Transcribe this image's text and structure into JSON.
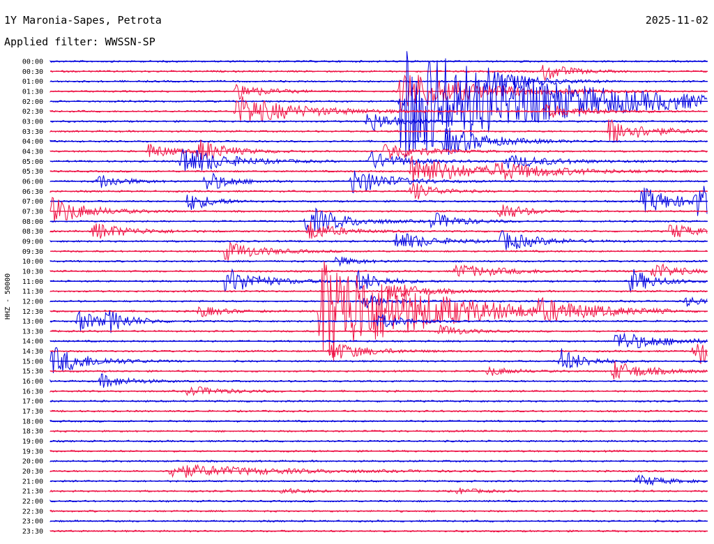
{
  "header": {
    "station_title": "1Y Maronia-Sapes, Petrota",
    "date": "2025-11-02",
    "filter_text": "Applied filter: WWSSN-SP"
  },
  "chart_data": {
    "type": "line",
    "ylabel": "HHZ - 50000",
    "row_labels": [
      "00:00",
      "00:30",
      "01:00",
      "01:30",
      "02:00",
      "02:30",
      "03:00",
      "03:30",
      "04:00",
      "04:30",
      "05:00",
      "05:30",
      "06:00",
      "06:30",
      "07:00",
      "07:30",
      "08:00",
      "08:30",
      "09:00",
      "09:30",
      "10:00",
      "10:30",
      "11:00",
      "11:30",
      "12:00",
      "12:30",
      "13:00",
      "13:30",
      "14:00",
      "14:30",
      "15:00",
      "15:30",
      "16:00",
      "16:30",
      "17:00",
      "17:30",
      "18:00",
      "18:30",
      "19:00",
      "19:30",
      "20:00",
      "20:30",
      "21:00",
      "21:30",
      "22:00",
      "22:30",
      "23:00",
      "23:30"
    ],
    "colors": [
      "#0000dd",
      "#ee1144"
    ],
    "row_minutes": 30,
    "events": [
      {
        "row": 1,
        "minute": 22.5,
        "amp": 1.0,
        "dur": 1.0
      },
      {
        "row": 2,
        "minute": 20.0,
        "amp": 1.5,
        "dur": 1.5
      },
      {
        "row": 3,
        "minute": 16.0,
        "amp": 2.2,
        "dur": 3.0
      },
      {
        "row": 3,
        "minute": 8.5,
        "amp": 0.8,
        "dur": 1.2
      },
      {
        "row": 4,
        "minute": 16.0,
        "amp": 6.0,
        "dur": 6.0
      },
      {
        "row": 5,
        "minute": 8.5,
        "amp": 1.6,
        "dur": 2.5
      },
      {
        "row": 5,
        "minute": 22.5,
        "amp": 0.7,
        "dur": 1.8
      },
      {
        "row": 6,
        "minute": 14.5,
        "amp": 1.2,
        "dur": 1.0
      },
      {
        "row": 7,
        "minute": 25.5,
        "amp": 1.4,
        "dur": 1.5
      },
      {
        "row": 8,
        "minute": 18.0,
        "amp": 1.5,
        "dur": 1.8
      },
      {
        "row": 9,
        "minute": 4.5,
        "amp": 0.8,
        "dur": 1.0
      },
      {
        "row": 9,
        "minute": 6.8,
        "amp": 1.2,
        "dur": 1.2
      },
      {
        "row": 9,
        "minute": 15.3,
        "amp": 1.0,
        "dur": 1.5
      },
      {
        "row": 10,
        "minute": 6.0,
        "amp": 1.6,
        "dur": 1.8
      },
      {
        "row": 10,
        "minute": 14.5,
        "amp": 1.0,
        "dur": 1.5
      },
      {
        "row": 10,
        "minute": 20.8,
        "amp": 0.7,
        "dur": 2.0
      },
      {
        "row": 11,
        "minute": 16.5,
        "amp": 1.8,
        "dur": 2.0
      },
      {
        "row": 11,
        "minute": 20.0,
        "amp": 0.8,
        "dur": 3.0
      },
      {
        "row": 12,
        "minute": 13.8,
        "amp": 1.4,
        "dur": 1.5
      },
      {
        "row": 12,
        "minute": 2.2,
        "amp": 0.8,
        "dur": 1.0
      },
      {
        "row": 12,
        "minute": 7.1,
        "amp": 1.1,
        "dur": 1.0
      },
      {
        "row": 13,
        "minute": 16.5,
        "amp": 1.0,
        "dur": 1.0
      },
      {
        "row": 14,
        "minute": 6.3,
        "amp": 1.0,
        "dur": 1.0
      },
      {
        "row": 14,
        "minute": 27.0,
        "amp": 1.4,
        "dur": 1.5
      },
      {
        "row": 14,
        "minute": 29.5,
        "amp": 1.8,
        "dur": 1.0
      },
      {
        "row": 15,
        "minute": 0.1,
        "amp": 1.4,
        "dur": 1.5
      },
      {
        "row": 15,
        "minute": 20.5,
        "amp": 1.0,
        "dur": 1.0
      },
      {
        "row": 16,
        "minute": 11.7,
        "amp": 1.6,
        "dur": 1.5
      },
      {
        "row": 16,
        "minute": 17.4,
        "amp": 0.9,
        "dur": 1.2
      },
      {
        "row": 17,
        "minute": 2.0,
        "amp": 0.9,
        "dur": 1.5
      },
      {
        "row": 17,
        "minute": 11.8,
        "amp": 1.0,
        "dur": 1.2
      },
      {
        "row": 17,
        "minute": 28.3,
        "amp": 0.9,
        "dur": 1.0
      },
      {
        "row": 18,
        "minute": 15.8,
        "amp": 1.0,
        "dur": 1.5
      },
      {
        "row": 18,
        "minute": 20.6,
        "amp": 1.0,
        "dur": 1.6
      },
      {
        "row": 19,
        "minute": 8.0,
        "amp": 1.0,
        "dur": 1.5
      },
      {
        "row": 20,
        "minute": 13.0,
        "amp": 0.5,
        "dur": 1.0
      },
      {
        "row": 21,
        "minute": 18.5,
        "amp": 0.7,
        "dur": 2.0
      },
      {
        "row": 21,
        "minute": 27.5,
        "amp": 1.0,
        "dur": 1.0
      },
      {
        "row": 22,
        "minute": 8.0,
        "amp": 1.4,
        "dur": 1.5
      },
      {
        "row": 22,
        "minute": 14.0,
        "amp": 1.2,
        "dur": 1.0
      },
      {
        "row": 22,
        "minute": 26.5,
        "amp": 1.3,
        "dur": 1.0
      },
      {
        "row": 23,
        "minute": 15.4,
        "amp": 1.0,
        "dur": 1.5
      },
      {
        "row": 24,
        "minute": 14.3,
        "amp": 0.8,
        "dur": 1.0
      },
      {
        "row": 24,
        "minute": 29.0,
        "amp": 0.5,
        "dur": 1.0
      },
      {
        "row": 25,
        "minute": 12.3,
        "amp": 6.0,
        "dur": 4.0
      },
      {
        "row": 25,
        "minute": 6.8,
        "amp": 0.6,
        "dur": 1.0
      },
      {
        "row": 25,
        "minute": 22.3,
        "amp": 0.9,
        "dur": 2.0
      },
      {
        "row": 26,
        "minute": 1.3,
        "amp": 1.1,
        "dur": 1.0
      },
      {
        "row": 26,
        "minute": 2.6,
        "amp": 1.0,
        "dur": 1.0
      },
      {
        "row": 26,
        "minute": 15.0,
        "amp": 0.8,
        "dur": 1.0
      },
      {
        "row": 27,
        "minute": 17.8,
        "amp": 0.6,
        "dur": 1.0
      },
      {
        "row": 28,
        "minute": 25.8,
        "amp": 1.0,
        "dur": 2.0
      },
      {
        "row": 29,
        "minute": 12.8,
        "amp": 1.0,
        "dur": 1.5
      },
      {
        "row": 29,
        "minute": 29.4,
        "amp": 1.6,
        "dur": 1.0
      },
      {
        "row": 30,
        "minute": 0.1,
        "amp": 1.5,
        "dur": 1.5
      },
      {
        "row": 30,
        "minute": 23.3,
        "amp": 1.3,
        "dur": 1.0
      },
      {
        "row": 31,
        "minute": 25.7,
        "amp": 1.0,
        "dur": 1.5
      },
      {
        "row": 31,
        "minute": 20.0,
        "amp": 0.5,
        "dur": 1.0
      },
      {
        "row": 32,
        "minute": 2.3,
        "amp": 0.7,
        "dur": 1.2
      },
      {
        "row": 33,
        "minute": 6.3,
        "amp": 0.5,
        "dur": 1.5
      },
      {
        "row": 41,
        "minute": 5.5,
        "amp": 0.7,
        "dur": 4.0
      },
      {
        "row": 42,
        "minute": 26.8,
        "amp": 0.6,
        "dur": 1.2
      },
      {
        "row": 43,
        "minute": 10.5,
        "amp": 0.3,
        "dur": 1.0
      },
      {
        "row": 43,
        "minute": 18.6,
        "amp": 0.3,
        "dur": 1.0
      }
    ]
  }
}
